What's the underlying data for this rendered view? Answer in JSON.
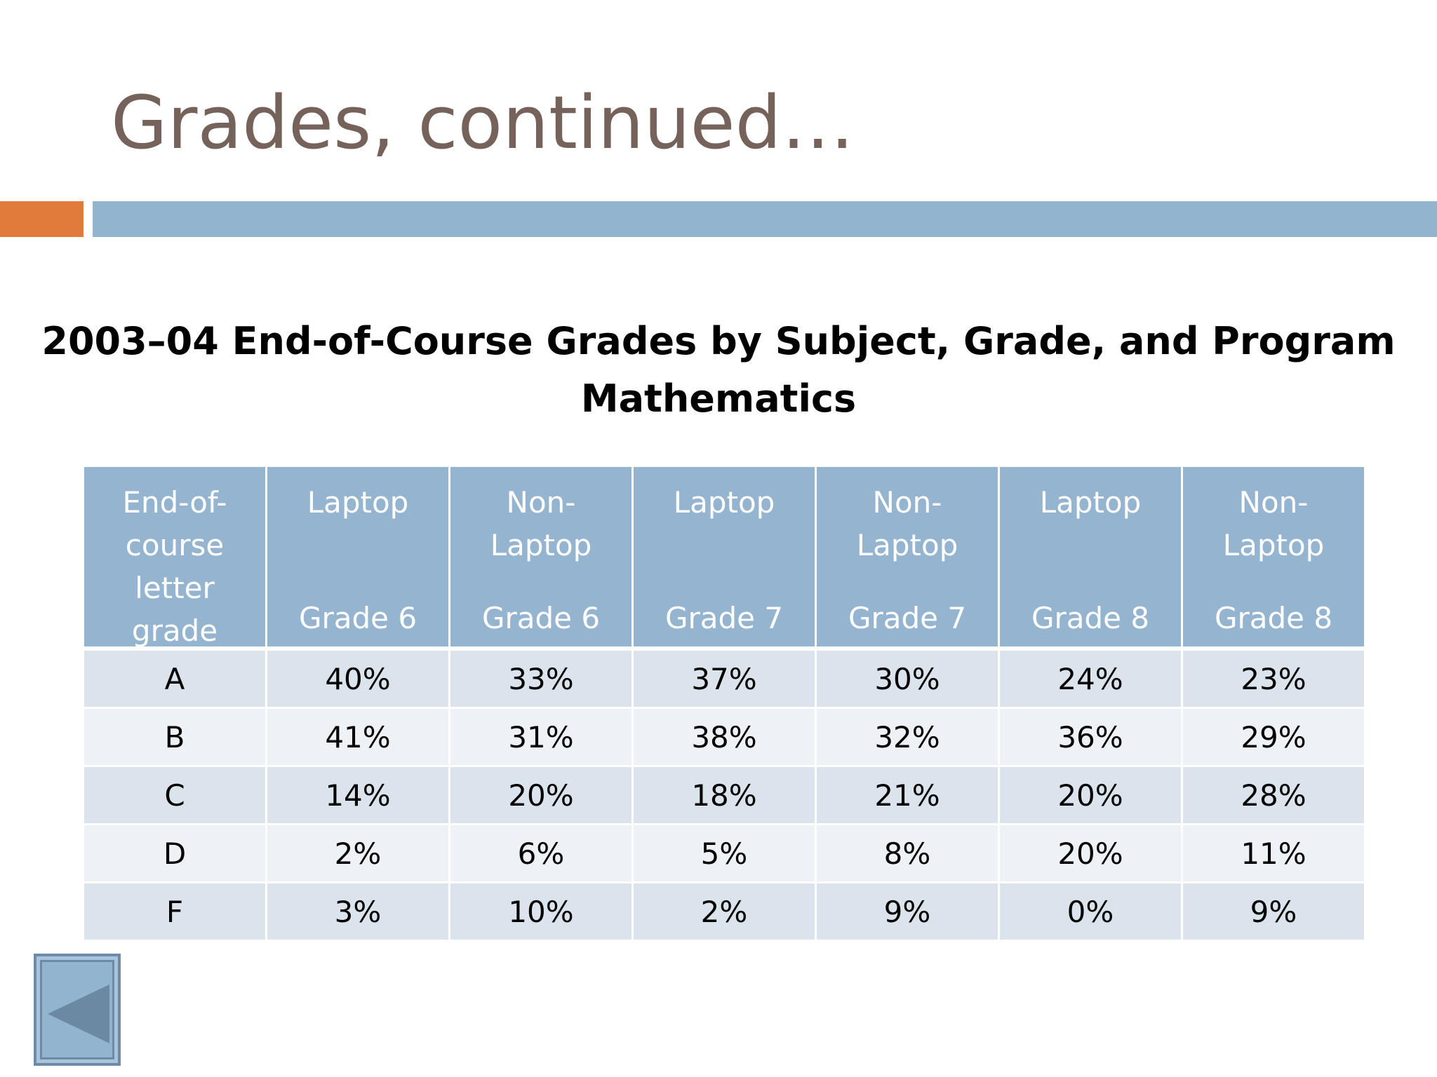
{
  "slide": {
    "title": "Grades, continued…"
  },
  "table": {
    "caption_line1": "2003–04 End-of-Course Grades by Subject, Grade, and Program",
    "caption_line2": "Mathematics",
    "headers": [
      {
        "top": [
          "End-of-",
          "course",
          "letter",
          "grade"
        ],
        "bottom": ""
      },
      {
        "top": [
          "Laptop"
        ],
        "bottom": "Grade 6"
      },
      {
        "top": [
          "Non-",
          "Laptop"
        ],
        "bottom": "Grade 6"
      },
      {
        "top": [
          "Laptop"
        ],
        "bottom": "Grade 7"
      },
      {
        "top": [
          "Non-",
          "Laptop"
        ],
        "bottom": "Grade 7"
      },
      {
        "top": [
          "Laptop"
        ],
        "bottom": "Grade 8"
      },
      {
        "top": [
          "Non-",
          "Laptop"
        ],
        "bottom": "Grade 8"
      }
    ],
    "rows": [
      [
        "A",
        "40%",
        "33%",
        "37%",
        "30%",
        "24%",
        "23%"
      ],
      [
        "B",
        "41%",
        "31%",
        "38%",
        "32%",
        "36%",
        "29%"
      ],
      [
        "C",
        "14%",
        "20%",
        "18%",
        "21%",
        "20%",
        "28%"
      ],
      [
        "D",
        "2%",
        "6%",
        "5%",
        "8%",
        "20%",
        "11%"
      ],
      [
        "F",
        "3%",
        "10%",
        "2%",
        "9%",
        "0%",
        "9%"
      ]
    ]
  },
  "navigation": {
    "back_icon": "triangle-left-icon"
  },
  "colors": {
    "title": "#75625a",
    "accent": "#e07b39",
    "divider": "#93b4cf",
    "header_bg": "#95b4d0",
    "row_dark": "#dbe4ec",
    "row_light": "#eef2f7"
  }
}
